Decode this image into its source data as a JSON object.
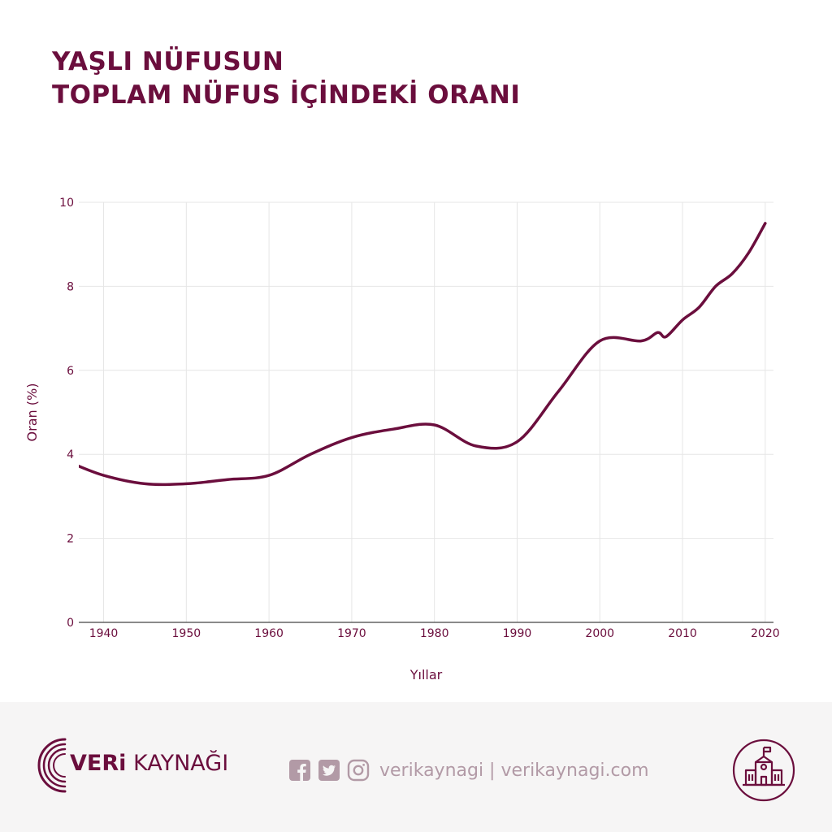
{
  "title": {
    "line1": "YAŞLI NÜFUSUN",
    "line2": "TOPLAM NÜFUS İÇİNDEKİ ORANI"
  },
  "colors": {
    "primary": "#6b0e3d",
    "grid": "#e6e6e6",
    "footer_bg": "#f6f5f5",
    "social": "#b29aa6"
  },
  "chart_data": {
    "type": "line",
    "xlabel": "Yıllar",
    "ylabel": "Oran (%)",
    "xlim": [
      1937,
      2021
    ],
    "ylim": [
      0,
      10
    ],
    "x_ticks": [
      1940,
      1950,
      1960,
      1970,
      1980,
      1990,
      2000,
      2010,
      2020
    ],
    "y_ticks": [
      0,
      2,
      4,
      6,
      8,
      10
    ],
    "grid": true,
    "series": [
      {
        "x": [
          1936,
          1940,
          1945,
          1950,
          1955,
          1960,
          1965,
          1970,
          1975,
          1980,
          1985,
          1990,
          1995,
          2000,
          2005,
          2007,
          2008,
          2010,
          2012,
          2014,
          2016,
          2018,
          2020
        ],
        "values": [
          3.8,
          3.5,
          3.3,
          3.3,
          3.4,
          3.5,
          4.0,
          4.4,
          4.6,
          4.7,
          4.2,
          4.3,
          5.5,
          6.7,
          6.7,
          6.9,
          6.8,
          7.2,
          7.5,
          8.0,
          8.3,
          8.8,
          9.5
        ]
      }
    ]
  },
  "footer": {
    "brand_bold": "VERi",
    "brand_light": "KAYNAĞI",
    "social_text": "verikaynagi | verikaynagi.com",
    "social_icons": [
      "facebook-icon",
      "twitter-icon",
      "instagram-icon"
    ],
    "badge_icon": "building-icon"
  }
}
